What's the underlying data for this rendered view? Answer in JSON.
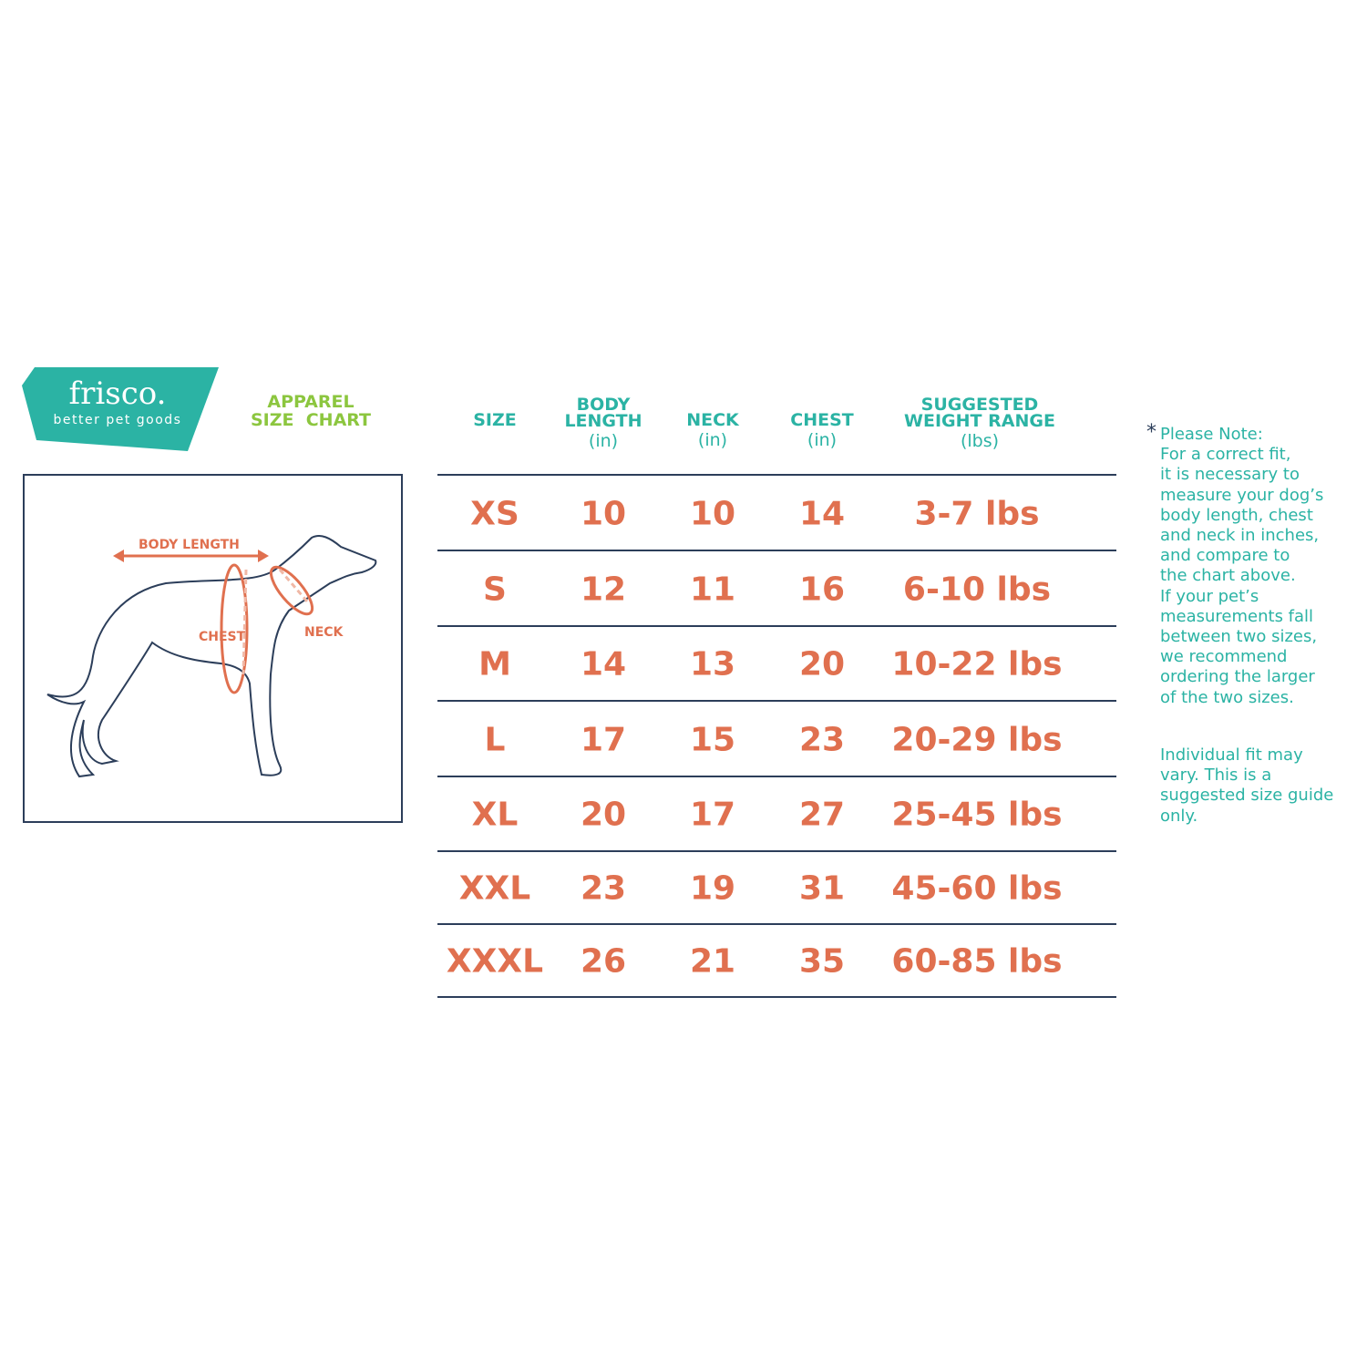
{
  "brand": {
    "name": "frisco.",
    "tagline": "better pet goods",
    "color": "#2bb3a4"
  },
  "title": {
    "line1": "APPAREL",
    "line2": "SIZE  CHART",
    "color": "#8cc63f"
  },
  "diagram": {
    "labels": {
      "body_length": "BODY LENGTH",
      "chest": "CHEST",
      "neck": "NECK"
    }
  },
  "table": {
    "headers": [
      {
        "label": "SIZE",
        "unit": ""
      },
      {
        "label": "BODY LENGTH",
        "unit": "(in)"
      },
      {
        "label": "NECK",
        "unit": "(in)"
      },
      {
        "label": "CHEST",
        "unit": "(in)"
      },
      {
        "label": "SUGGESTED WEIGHT RANGE",
        "unit": "(lbs)"
      }
    ],
    "header_lines": {
      "body1": "BODY",
      "body2": "LENGTH",
      "w1": "SUGGESTED",
      "w2": "WEIGHT RANGE"
    },
    "rows": [
      [
        "XS",
        "10",
        "10",
        "14",
        "3-7 lbs"
      ],
      [
        "S",
        "12",
        "11",
        "16",
        "6-10 lbs"
      ],
      [
        "M",
        "14",
        "13",
        "20",
        "10-22 lbs"
      ],
      [
        "L",
        "17",
        "15",
        "23",
        "20-29 lbs"
      ],
      [
        "XL",
        "20",
        "17",
        "27",
        "25-45 lbs"
      ],
      [
        "XXL",
        "23",
        "19",
        "31",
        "45-60 lbs"
      ],
      [
        "XXXL",
        "26",
        "21",
        "35",
        "60-85 lbs"
      ]
    ],
    "value_color": "#e0704f"
  },
  "note": {
    "asterisk": "*",
    "text": "Please Note:\nFor a correct fit,\nit is necessary to\nmeasure your dog’s\nbody length, chest\nand neck in inches,\nand compare to\nthe chart above.\nIf your pet’s\nmeasurements fall\nbetween two sizes,\nwe recommend\nordering the larger\nof the two sizes.",
    "disclaimer": "Individual fit may vary. This is a suggested size guide only."
  }
}
